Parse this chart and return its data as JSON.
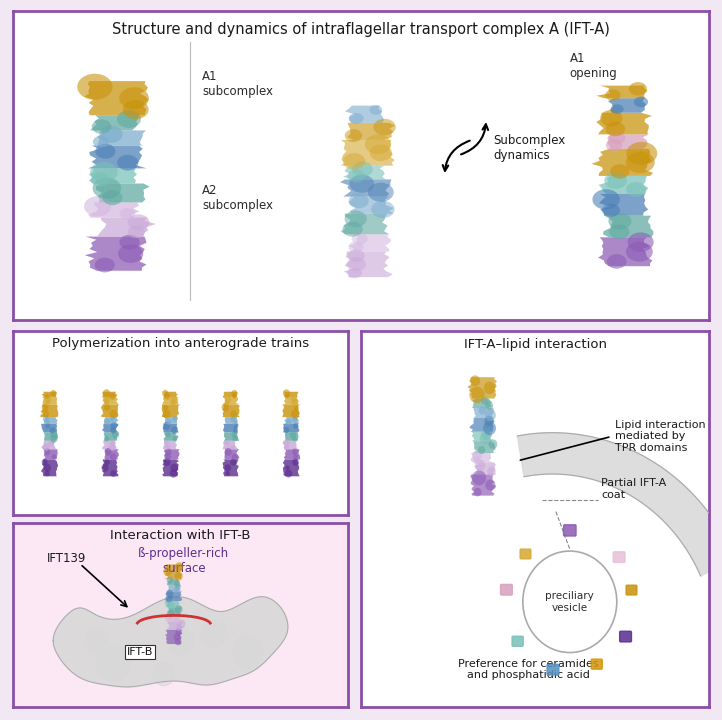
{
  "title": "Structure and dynamics of intraflagellar transport complex A (IFT-A)",
  "bg_outer": "#f2e8f4",
  "bg_inner": "#ffffff",
  "bg_botleft": "#fce8f5",
  "bg_right": "#ffffff",
  "border_color": "#8b4fa8",
  "panel_labels": {
    "top": "Structure and dynamics of intraflagellar transport complex A (IFT-A)",
    "mid_left": "Polymerization into anterograde trains",
    "mid_right": "IFT-A–lipid interaction",
    "bot_left": "Interaction with IFT-B"
  },
  "annotations": {
    "A1_subcomplex": "A1\nsubcomplex",
    "A2_subcomplex": "A2\nsubcomplex",
    "A1_opening": "A1\nopening",
    "subcomplex_dynamics": "Subcomplex\ndynamics",
    "IFT139": "IFT139",
    "IFT_B": "IFT-B",
    "beta_propeller": "ß-propeller-rich\nsurface",
    "lipid_interaction": "Lipid interaction\nmediated by\nTPR domains",
    "partial_IFTA": "Partial IFT-A\ncoat",
    "preciliary": "preciliary\nvesicle",
    "preference": "Preference for ceramides\nand phosphatidic acid"
  },
  "colors": {
    "purple_dark": "#5b2d8e",
    "purple_mid": "#8c5bb5",
    "purple_light": "#c9a8d8",
    "lavender": "#d4b8e0",
    "teal": "#5fa8a0",
    "blue": "#4a7fb5",
    "blue_light": "#7aabcc",
    "gold": "#c8920a",
    "gold_light": "#d4a830",
    "pink": "#d8a0be",
    "pink_light": "#e8c0d8",
    "cyan": "#78c0b8",
    "red": "#cc3333",
    "gray_light": "#d8d8d8",
    "gray_mid": "#aaaaaa",
    "gray_dark": "#888888",
    "gray_vesicle": "#e8e8e8",
    "orange_gold": "#d4960a",
    "blue_mid": "#5590c0"
  }
}
